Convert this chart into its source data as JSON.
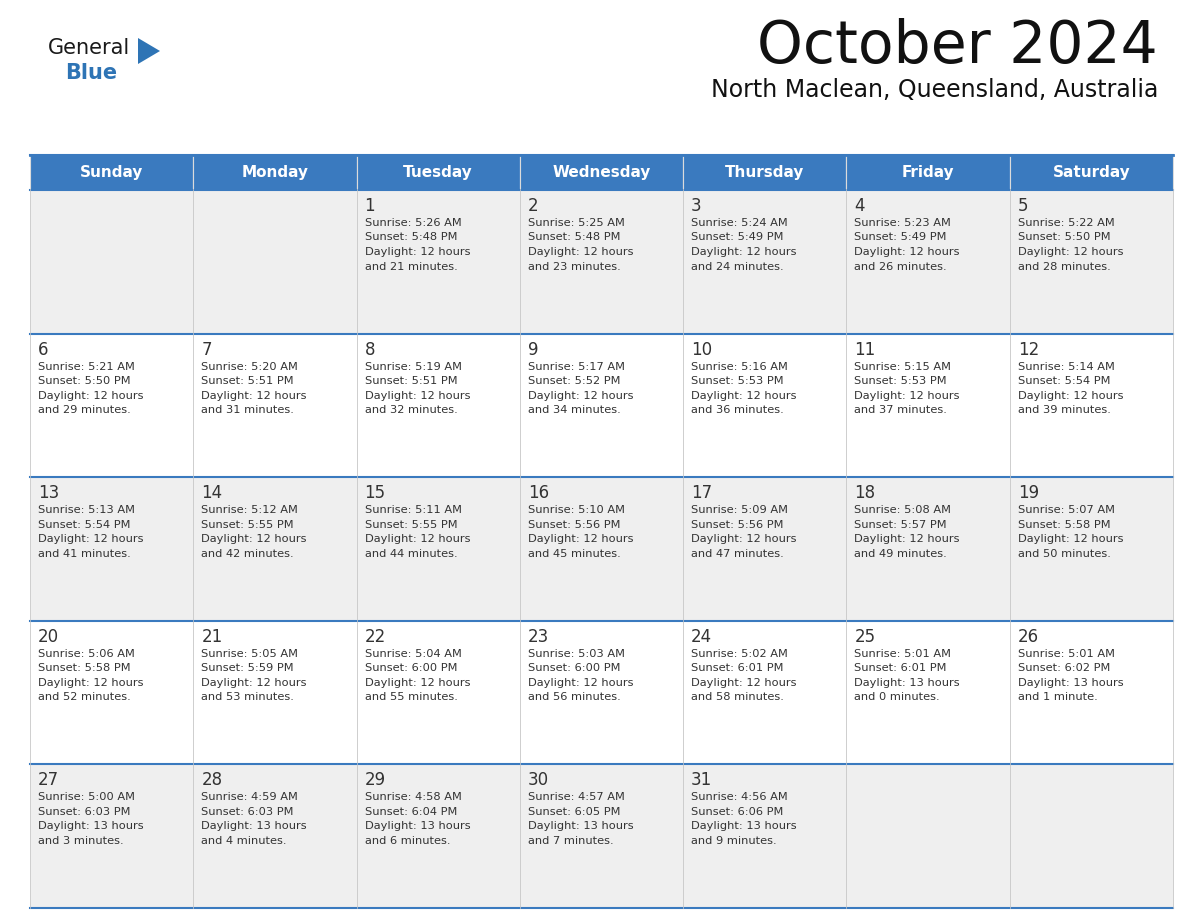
{
  "title": "October 2024",
  "subtitle": "North Maclean, Queensland, Australia",
  "header_color": "#3a7abf",
  "header_text_color": "#FFFFFF",
  "week1_bg": "#EFEFEF",
  "week2_bg": "#FFFFFF",
  "day_number_color": "#333333",
  "text_color": "#333333",
  "line_color": "#3a7abf",
  "cell_border_color": "#CCCCCC",
  "logo_general_color": "#1a1a1a",
  "logo_blue_color": "#2E74B5",
  "logo_triangle_color": "#2E74B5",
  "days_of_week": [
    "Sunday",
    "Monday",
    "Tuesday",
    "Wednesday",
    "Thursday",
    "Friday",
    "Saturday"
  ],
  "weeks": [
    [
      {
        "day": null,
        "sunrise": null,
        "sunset": null,
        "daylight": null
      },
      {
        "day": null,
        "sunrise": null,
        "sunset": null,
        "daylight": null
      },
      {
        "day": 1,
        "sunrise": "5:26 AM",
        "sunset": "5:48 PM",
        "daylight": "12 hours",
        "daylight2": "and 21 minutes."
      },
      {
        "day": 2,
        "sunrise": "5:25 AM",
        "sunset": "5:48 PM",
        "daylight": "12 hours",
        "daylight2": "and 23 minutes."
      },
      {
        "day": 3,
        "sunrise": "5:24 AM",
        "sunset": "5:49 PM",
        "daylight": "12 hours",
        "daylight2": "and 24 minutes."
      },
      {
        "day": 4,
        "sunrise": "5:23 AM",
        "sunset": "5:49 PM",
        "daylight": "12 hours",
        "daylight2": "and 26 minutes."
      },
      {
        "day": 5,
        "sunrise": "5:22 AM",
        "sunset": "5:50 PM",
        "daylight": "12 hours",
        "daylight2": "and 28 minutes."
      }
    ],
    [
      {
        "day": 6,
        "sunrise": "5:21 AM",
        "sunset": "5:50 PM",
        "daylight": "12 hours",
        "daylight2": "and 29 minutes."
      },
      {
        "day": 7,
        "sunrise": "5:20 AM",
        "sunset": "5:51 PM",
        "daylight": "12 hours",
        "daylight2": "and 31 minutes."
      },
      {
        "day": 8,
        "sunrise": "5:19 AM",
        "sunset": "5:51 PM",
        "daylight": "12 hours",
        "daylight2": "and 32 minutes."
      },
      {
        "day": 9,
        "sunrise": "5:17 AM",
        "sunset": "5:52 PM",
        "daylight": "12 hours",
        "daylight2": "and 34 minutes."
      },
      {
        "day": 10,
        "sunrise": "5:16 AM",
        "sunset": "5:53 PM",
        "daylight": "12 hours",
        "daylight2": "and 36 minutes."
      },
      {
        "day": 11,
        "sunrise": "5:15 AM",
        "sunset": "5:53 PM",
        "daylight": "12 hours",
        "daylight2": "and 37 minutes."
      },
      {
        "day": 12,
        "sunrise": "5:14 AM",
        "sunset": "5:54 PM",
        "daylight": "12 hours",
        "daylight2": "and 39 minutes."
      }
    ],
    [
      {
        "day": 13,
        "sunrise": "5:13 AM",
        "sunset": "5:54 PM",
        "daylight": "12 hours",
        "daylight2": "and 41 minutes."
      },
      {
        "day": 14,
        "sunrise": "5:12 AM",
        "sunset": "5:55 PM",
        "daylight": "12 hours",
        "daylight2": "and 42 minutes."
      },
      {
        "day": 15,
        "sunrise": "5:11 AM",
        "sunset": "5:55 PM",
        "daylight": "12 hours",
        "daylight2": "and 44 minutes."
      },
      {
        "day": 16,
        "sunrise": "5:10 AM",
        "sunset": "5:56 PM",
        "daylight": "12 hours",
        "daylight2": "and 45 minutes."
      },
      {
        "day": 17,
        "sunrise": "5:09 AM",
        "sunset": "5:56 PM",
        "daylight": "12 hours",
        "daylight2": "and 47 minutes."
      },
      {
        "day": 18,
        "sunrise": "5:08 AM",
        "sunset": "5:57 PM",
        "daylight": "12 hours",
        "daylight2": "and 49 minutes."
      },
      {
        "day": 19,
        "sunrise": "5:07 AM",
        "sunset": "5:58 PM",
        "daylight": "12 hours",
        "daylight2": "and 50 minutes."
      }
    ],
    [
      {
        "day": 20,
        "sunrise": "5:06 AM",
        "sunset": "5:58 PM",
        "daylight": "12 hours",
        "daylight2": "and 52 minutes."
      },
      {
        "day": 21,
        "sunrise": "5:05 AM",
        "sunset": "5:59 PM",
        "daylight": "12 hours",
        "daylight2": "and 53 minutes."
      },
      {
        "day": 22,
        "sunrise": "5:04 AM",
        "sunset": "6:00 PM",
        "daylight": "12 hours",
        "daylight2": "and 55 minutes."
      },
      {
        "day": 23,
        "sunrise": "5:03 AM",
        "sunset": "6:00 PM",
        "daylight": "12 hours",
        "daylight2": "and 56 minutes."
      },
      {
        "day": 24,
        "sunrise": "5:02 AM",
        "sunset": "6:01 PM",
        "daylight": "12 hours",
        "daylight2": "and 58 minutes."
      },
      {
        "day": 25,
        "sunrise": "5:01 AM",
        "sunset": "6:01 PM",
        "daylight": "13 hours",
        "daylight2": "and 0 minutes."
      },
      {
        "day": 26,
        "sunrise": "5:01 AM",
        "sunset": "6:02 PM",
        "daylight": "13 hours",
        "daylight2": "and 1 minute."
      }
    ],
    [
      {
        "day": 27,
        "sunrise": "5:00 AM",
        "sunset": "6:03 PM",
        "daylight": "13 hours",
        "daylight2": "and 3 minutes."
      },
      {
        "day": 28,
        "sunrise": "4:59 AM",
        "sunset": "6:03 PM",
        "daylight": "13 hours",
        "daylight2": "and 4 minutes."
      },
      {
        "day": 29,
        "sunrise": "4:58 AM",
        "sunset": "6:04 PM",
        "daylight": "13 hours",
        "daylight2": "and 6 minutes."
      },
      {
        "day": 30,
        "sunrise": "4:57 AM",
        "sunset": "6:05 PM",
        "daylight": "13 hours",
        "daylight2": "and 7 minutes."
      },
      {
        "day": 31,
        "sunrise": "4:56 AM",
        "sunset": "6:06 PM",
        "daylight": "13 hours",
        "daylight2": "and 9 minutes."
      },
      {
        "day": null,
        "sunrise": null,
        "sunset": null,
        "daylight": null,
        "daylight2": null
      },
      {
        "day": null,
        "sunrise": null,
        "sunset": null,
        "daylight": null,
        "daylight2": null
      }
    ]
  ]
}
